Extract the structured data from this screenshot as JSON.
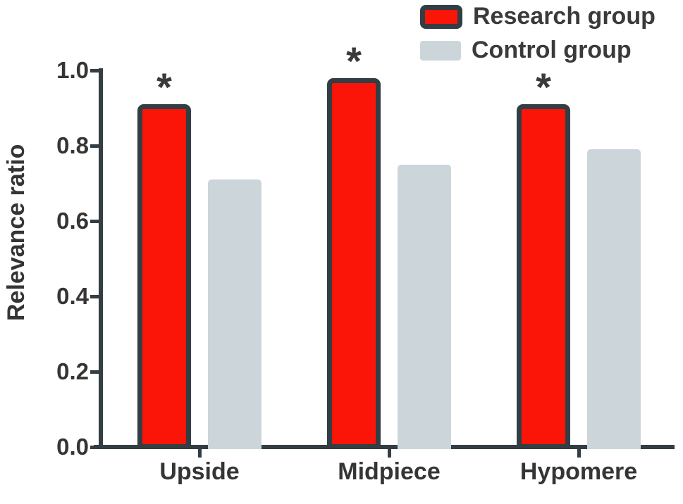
{
  "chart_data": {
    "type": "bar",
    "title": "",
    "xlabel": "",
    "ylabel": "Relevance ratio",
    "categories": [
      "Upside",
      "Midpiece",
      "Hypomere"
    ],
    "series": [
      {
        "name": "Research group",
        "values": [
          0.91,
          0.98,
          0.91
        ],
        "fill_color": "#fb1509",
        "border_color": "#333d44",
        "significance": [
          "*",
          "*",
          "*"
        ]
      },
      {
        "name": "Control group",
        "values": [
          0.71,
          0.75,
          0.79
        ],
        "fill_color": "#ccd6da",
        "border_color": null,
        "significance": [
          "",
          "",
          ""
        ]
      }
    ],
    "ylim": [
      0.0,
      1.0
    ],
    "yticks": [
      0.0,
      0.2,
      0.4,
      0.6,
      0.8,
      1.0
    ],
    "ytick_labels": [
      "0.0",
      "0.2",
      "0.4",
      "0.6",
      "0.8",
      "1.0"
    ],
    "grid": false,
    "legend_position": "top-right"
  },
  "colors": {
    "axis": "#333d44",
    "text": "#353535",
    "background": "#ffffff"
  }
}
